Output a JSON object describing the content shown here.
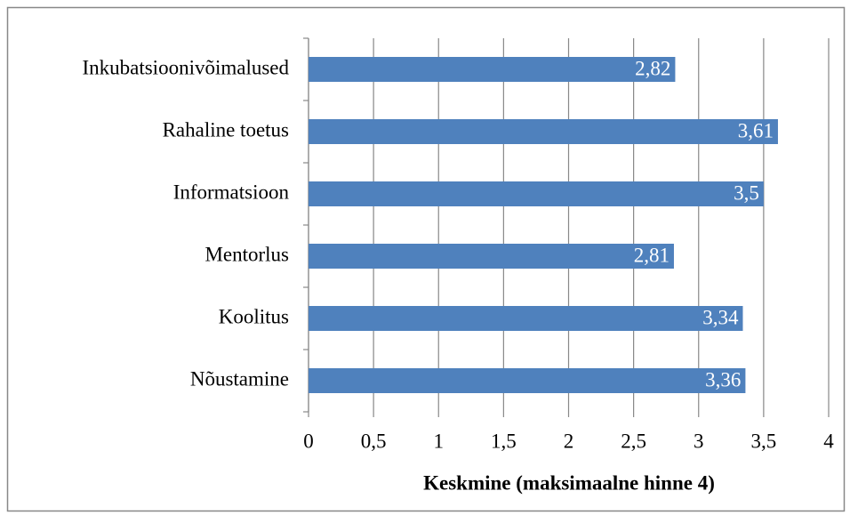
{
  "chart_data": {
    "type": "bar",
    "orientation": "horizontal",
    "x_label": "Keskmine (maksimaalne hinne 4)",
    "categories": [
      "Inkubatsioonivõimalused",
      "Rahaline toetus",
      "Informatsioon",
      "Mentorlus",
      "Koolitus",
      "Nõustamine"
    ],
    "values": [
      2.82,
      3.61,
      3.5,
      2.81,
      3.34,
      3.36
    ],
    "value_labels": [
      "2,82",
      "3,61",
      "3,5",
      "2,81",
      "3,34",
      "3,36"
    ],
    "color": "#4f81bd",
    "xlim": [
      0,
      4
    ],
    "xticks": [
      0,
      {
        "value": 0.5,
        "label": "0,5"
      },
      1,
      {
        "value": 1.5,
        "label": "1,5"
      },
      2,
      {
        "value": 2.5,
        "label": "2,5"
      },
      3,
      {
        "value": 3.5,
        "label": "3,5"
      },
      4
    ],
    "grid": true
  }
}
